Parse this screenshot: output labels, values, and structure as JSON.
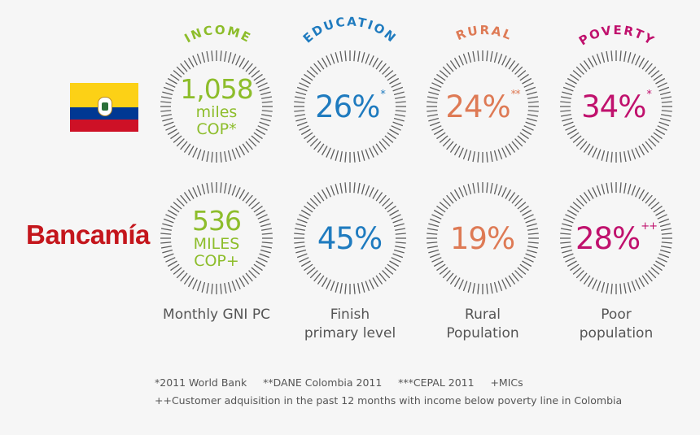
{
  "logo": {
    "text": "Bancamía",
    "color": "#c4161c"
  },
  "flag": {
    "name": "colombia-flag"
  },
  "columns": [
    {
      "title": "INCOME",
      "title_color": "#8dbd2b",
      "caption_lines": [
        "Monthly GNI PC"
      ],
      "top": {
        "value": "1,058",
        "unit": "miles",
        "unit2": "COP*",
        "color": "#8dbd2b"
      },
      "bottom": {
        "value": "536",
        "unit": "MILES",
        "unit2": "COP+",
        "color": "#8dbd2b"
      }
    },
    {
      "title": "EDUCATION",
      "title_color": "#1f7bbf",
      "caption_lines": [
        "Finish",
        "primary level"
      ],
      "top": {
        "value": "26%",
        "sup": "*",
        "color": "#1f7bbf"
      },
      "bottom": {
        "value": "45%",
        "sup": "",
        "color": "#1f7bbf"
      }
    },
    {
      "title": "RURAL",
      "title_color": "#de7a55",
      "caption_lines": [
        "Rural",
        "Population"
      ],
      "top": {
        "value": "24%",
        "sup": "**",
        "color": "#de7a55"
      },
      "bottom": {
        "value": "19%",
        "sup": "",
        "color": "#de7a55"
      }
    },
    {
      "title": "POVERTY",
      "title_color": "#c0116d",
      "caption_lines": [
        "Poor",
        "population"
      ],
      "top": {
        "value": "34%",
        "sup": "*",
        "color": "#c0116d"
      },
      "bottom": {
        "value": "28%",
        "sup": "++",
        "color": "#c0116d"
      }
    }
  ],
  "footnotes": {
    "line1": "*2011 World Bank     **DANE Colombia 2011     ***CEPAL 2011     +MICs",
    "line2": "++Customer adquisition in the past 12 months with income below poverty line in Colombia"
  }
}
